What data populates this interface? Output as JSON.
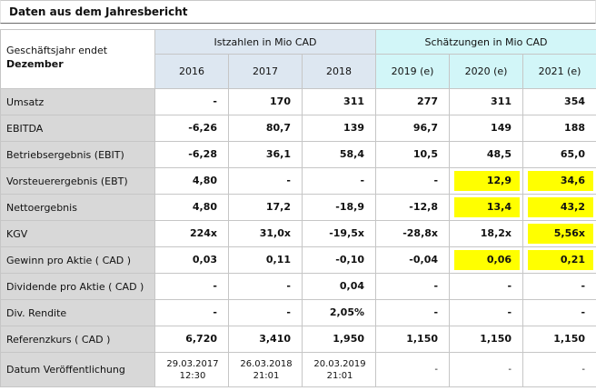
{
  "title": "Daten aus dem Jahresbericht",
  "table": {
    "corner": {
      "line1": "Geschäftsjahr endet",
      "line2": "Dezember"
    },
    "group_headers": [
      {
        "label": "Istzahlen in Mio CAD",
        "span": 3
      },
      {
        "label": "Schätzungen in Mio CAD",
        "span": 3
      }
    ],
    "years": [
      "2016",
      "2017",
      "2018",
      "2019 (e)",
      "2020 (e)",
      "2021 (e)"
    ],
    "rows": [
      {
        "label": "Umsatz",
        "values": [
          "-",
          "170",
          "311",
          "277",
          "311",
          "354"
        ],
        "highlights": []
      },
      {
        "label": "EBITDA",
        "values": [
          "-6,26",
          "80,7",
          "139",
          "96,7",
          "149",
          "188"
        ],
        "highlights": []
      },
      {
        "label": "Betriebsergebnis (EBIT)",
        "values": [
          "-6,28",
          "36,1",
          "58,4",
          "10,5",
          "48,5",
          "65,0"
        ],
        "highlights": []
      },
      {
        "label": "Vorsteuerergebnis (EBT)",
        "values": [
          "4,80",
          "-",
          "-",
          "-",
          "12,9",
          "34,6"
        ],
        "highlights": [
          4,
          5
        ]
      },
      {
        "label": "Nettoergebnis",
        "values": [
          "4,80",
          "17,2",
          "-18,9",
          "-12,8",
          "13,4",
          "43,2"
        ],
        "highlights": [
          4,
          5
        ]
      },
      {
        "label": "KGV",
        "values": [
          "224x",
          "31,0x",
          "-19,5x",
          "-28,8x",
          "18,2x",
          "5,56x"
        ],
        "highlights": [
          5
        ]
      },
      {
        "label": "Gewinn pro Aktie ( CAD )",
        "values": [
          "0,03",
          "0,11",
          "-0,10",
          "-0,04",
          "0,06",
          "0,21"
        ],
        "highlights": [
          4,
          5
        ]
      },
      {
        "label": "Dividende pro Aktie ( CAD )",
        "values": [
          "-",
          "-",
          "0,04",
          "-",
          "-",
          "-"
        ],
        "highlights": []
      },
      {
        "label": "Div. Rendite",
        "values": [
          "-",
          "-",
          "2,05%",
          "-",
          "-",
          "-"
        ],
        "highlights": []
      },
      {
        "label": "Referenzkurs ( CAD )",
        "values": [
          "6,720",
          "3,410",
          "1,950",
          "1,150",
          "1,150",
          "1,150"
        ],
        "highlights": []
      },
      {
        "label": "Datum Veröffentlichung",
        "values": [
          "29.03.2017 12:30",
          "26.03.2018 21:01",
          "20.03.2019 21:01",
          "-",
          "-",
          "-"
        ],
        "highlights": [],
        "small": true
      }
    ]
  },
  "colors": {
    "actuals_header_bg": "#dde7f1",
    "estimates_header_bg": "#d2f6f8",
    "row_label_bg": "#d8d8d8",
    "highlight": "#ffff00"
  }
}
